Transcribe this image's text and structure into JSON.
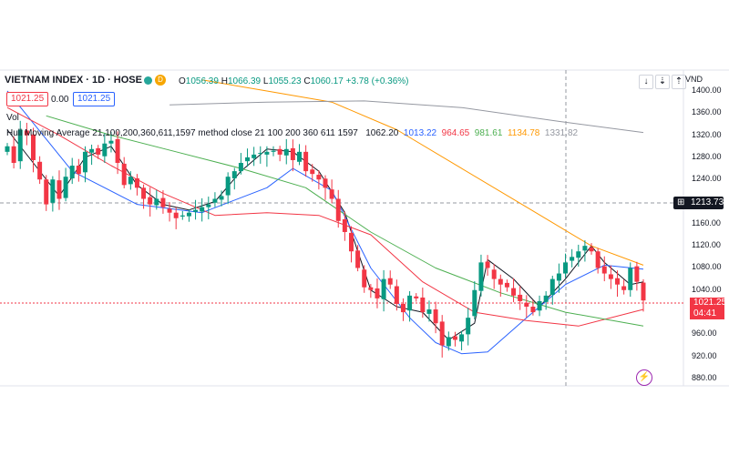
{
  "header": {
    "title": "VIETNAM INDEX · 1D · HOSE",
    "market_badge": "D",
    "ohlc": {
      "open_label": "O",
      "open": "1056.39",
      "high_label": "H",
      "high": "1066.39",
      "low_label": "L",
      "low": "1055.23",
      "close_label": "C",
      "close": "1060.17",
      "change": "+3.78 (+0.36%)"
    },
    "sell_price": "1021.25",
    "spread": "0.00",
    "buy_price": "1021.25"
  },
  "legend": {
    "vol": "Vol",
    "hma_label": "Hull Moving Average 21,100,200,360,611,1597 method close 21 100 200 360 611 1597",
    "hma_values": [
      "1062.20",
      "1013.22",
      "964.65",
      "981.61",
      "1134.78",
      "1331.82"
    ]
  },
  "toolbar": {
    "down_icon": "↓",
    "collapse_icon": "⇣",
    "expand_icon": "⇡"
  },
  "currency": "VND",
  "crosshair_price": "1213.73",
  "last_price": "1021.25",
  "countdown": "04:41",
  "colors": {
    "up": "#089981",
    "down": "#f23645",
    "hma21": "#131722",
    "hma100": "#2962ff",
    "hma200": "#f23645",
    "hma360": "#4caf50",
    "hma611": "#ff9800",
    "hma1597": "#9598a1"
  },
  "chart_data": {
    "type": "candlestick",
    "title": "VIETNAM INDEX · 1D · HOSE",
    "ylabel": "VND",
    "yticks": [
      880,
      920,
      960,
      1000,
      1040,
      1080,
      1120,
      1160,
      1200,
      1240,
      1280,
      1320,
      1360,
      1400
    ],
    "ylim": [
      868,
      1420
    ],
    "n_bars": 99,
    "close": [
      1300,
      1270,
      1330,
      1320,
      1275,
      1240,
      1195,
      1240,
      1205,
      1245,
      1265,
      1250,
      1290,
      1295,
      1285,
      1305,
      1310,
      1270,
      1230,
      1245,
      1225,
      1205,
      1195,
      1205,
      1190,
      1180,
      1170,
      1175,
      1180,
      1185,
      1190,
      1195,
      1205,
      1210,
      1245,
      1255,
      1270,
      1280,
      1285,
      1288,
      1290,
      1292,
      1285,
      1295,
      1275,
      1290,
      1255,
      1250,
      1240,
      1225,
      1205,
      1165,
      1145,
      1110,
      1080,
      1045,
      1040,
      1025,
      1060,
      1050,
      1015,
      1000,
      1030,
      1025,
      1000,
      1005,
      980,
      940,
      955,
      950,
      960,
      990,
      1040,
      1090,
      1080,
      1060,
      1050,
      1045,
      1030,
      1020,
      1010,
      1000,
      1020,
      1030,
      1060,
      1070,
      1090,
      1100,
      1110,
      1120,
      1110,
      1080,
      1070,
      1060,
      1050,
      1040,
      1080,
      1055,
      1021.25
    ],
    "series": [
      {
        "name": "HMA 21",
        "x": [
          0,
          4,
          8,
          12,
          16,
          20,
          24,
          28,
          32,
          36,
          40,
          44,
          48,
          52,
          56,
          60,
          64,
          68,
          72,
          74,
          78,
          82,
          86,
          90,
          92,
          94,
          96,
          98
        ],
        "y": [
          1330,
          1270,
          1210,
          1280,
          1300,
          1230,
          1195,
          1185,
          1200,
          1255,
          1295,
          1290,
          1255,
          1180,
          1040,
          1010,
          1000,
          950,
          980,
          1095,
          1060,
          1010,
          1060,
          1120,
          1090,
          1070,
          1050,
          1055
        ]
      },
      {
        "name": "HMA 100",
        "x": [
          0,
          10,
          20,
          30,
          40,
          44,
          50,
          56,
          62,
          66,
          70,
          74,
          80,
          86,
          92,
          98
        ],
        "y": [
          1400,
          1255,
          1195,
          1180,
          1225,
          1260,
          1220,
          1080,
          990,
          945,
          925,
          928,
          990,
          1050,
          1085,
          1078
        ]
      },
      {
        "name": "HMA 200",
        "x": [
          0,
          8,
          16,
          24,
          32,
          40,
          48,
          56,
          64,
          72,
          80,
          88,
          98
        ],
        "y": [
          1370,
          1320,
          1265,
          1215,
          1175,
          1180,
          1175,
          1140,
          1055,
          1000,
          985,
          975,
          1005
        ]
      },
      {
        "name": "HMA 360",
        "x": [
          6,
          16,
          26,
          36,
          46,
          56,
          66,
          76,
          86,
          98
        ],
        "y": [
          1355,
          1320,
          1290,
          1260,
          1225,
          1145,
          1080,
          1035,
          1000,
          975
        ]
      },
      {
        "name": "HMA 611",
        "x": [
          30,
          40,
          50,
          60,
          70,
          80,
          90,
          98
        ],
        "y": [
          1420,
          1400,
          1380,
          1330,
          1260,
          1190,
          1120,
          1085
        ]
      },
      {
        "name": "HMA 1597",
        "x": [
          25,
          40,
          55,
          70,
          85,
          98
        ],
        "y": [
          1375,
          1380,
          1382,
          1370,
          1345,
          1325
        ]
      }
    ]
  }
}
